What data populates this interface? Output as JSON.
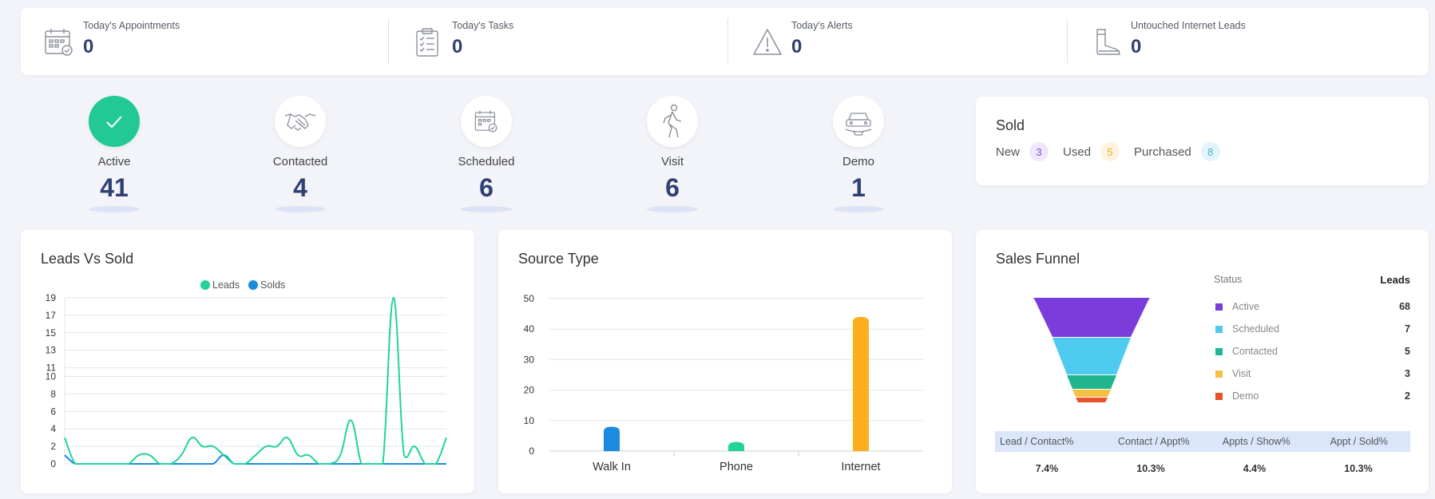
{
  "summary": [
    {
      "label": "Today's Appointments",
      "value": "0",
      "icon": "calendar-check-icon"
    },
    {
      "label": "Today's Tasks",
      "value": "0",
      "icon": "clipboard-list-icon"
    },
    {
      "label": "Today's Alerts",
      "value": "0",
      "icon": "warning-triangle-icon"
    },
    {
      "label": "Untouched Internet Leads",
      "value": "0",
      "icon": "boot-icon"
    }
  ],
  "statuses": [
    {
      "label": "Active",
      "value": "41",
      "icon": "check-icon"
    },
    {
      "label": "Contacted",
      "value": "4",
      "icon": "handshake-icon"
    },
    {
      "label": "Scheduled",
      "value": "6",
      "icon": "calendar-check-icon"
    },
    {
      "label": "Visit",
      "value": "6",
      "icon": "walking-person-icon"
    },
    {
      "label": "Demo",
      "value": "1",
      "icon": "car-icon"
    }
  ],
  "sold": {
    "title": "Sold",
    "new_label": "New",
    "new_value": "3",
    "used_label": "Used",
    "used_value": "5",
    "purchased_label": "Purchased",
    "purchased_value": "8"
  },
  "leads_vs_sold": {
    "title": "Leads Vs Sold",
    "legend": [
      "Leads",
      "Solds"
    ]
  },
  "source_type": {
    "title": "Source Type"
  },
  "sales_funnel": {
    "title": "Sales Funnel",
    "status_header": "Status",
    "leads_header": "Leads",
    "rows": [
      {
        "label": "Active",
        "value": "68",
        "color": "#7a3ddb"
      },
      {
        "label": "Scheduled",
        "value": "7",
        "color": "#4fcbf0"
      },
      {
        "label": "Contacted",
        "value": "5",
        "color": "#1fb58f"
      },
      {
        "label": "Visit",
        "value": "3",
        "color": "#f4c042"
      },
      {
        "label": "Demo",
        "value": "2",
        "color": "#e8512a"
      }
    ],
    "metric_headers": [
      "Lead / Contact%",
      "Contact / Appt%",
      "Appts / Show%",
      "Appt / Sold%"
    ],
    "metric_values": [
      "7.4%",
      "10.3%",
      "4.4%",
      "10.3%"
    ]
  },
  "chart_data": [
    {
      "type": "line",
      "yticks": [
        0,
        2,
        4,
        6,
        8,
        10,
        11,
        13,
        15,
        17,
        19
      ],
      "ylim": [
        0,
        19
      ],
      "legend_position": "top-center",
      "grid": true,
      "x": [
        0,
        1,
        2,
        3,
        4,
        5,
        6,
        7,
        8,
        9,
        10,
        11,
        12,
        13,
        14,
        15,
        16,
        17,
        18,
        19,
        20,
        21,
        22,
        23,
        24,
        25,
        26,
        27,
        28,
        29,
        30,
        31,
        32,
        33,
        34,
        35,
        36
      ],
      "series": [
        {
          "name": "Leads",
          "color": "#22d49a",
          "values": [
            3,
            0,
            0,
            0,
            0,
            0,
            0,
            1,
            1,
            0,
            0,
            1,
            3,
            2,
            2,
            1,
            0,
            0,
            1,
            2,
            2,
            3,
            1,
            1,
            0,
            0,
            1,
            5,
            0,
            0,
            0,
            19,
            1,
            2,
            0,
            0,
            3
          ]
        },
        {
          "name": "Solds",
          "color": "#1b8be0",
          "values": [
            1,
            0,
            0,
            0,
            0,
            0,
            0,
            0,
            0,
            0,
            0,
            0,
            0,
            0,
            0,
            1,
            0,
            0,
            0,
            0,
            0,
            0,
            0,
            0,
            0,
            0,
            0,
            0,
            0,
            0,
            0,
            0,
            0,
            0,
            0,
            0,
            0
          ]
        }
      ]
    },
    {
      "type": "bar",
      "categories": [
        "Walk In",
        "Phone",
        "Internet"
      ],
      "values": [
        8,
        3,
        44
      ],
      "colors": [
        "#1b8be0",
        "#22d49a",
        "#fcae1e"
      ],
      "yticks": [
        0,
        10,
        20,
        30,
        40,
        50
      ],
      "ylim": [
        0,
        50
      ],
      "grid": true
    }
  ]
}
